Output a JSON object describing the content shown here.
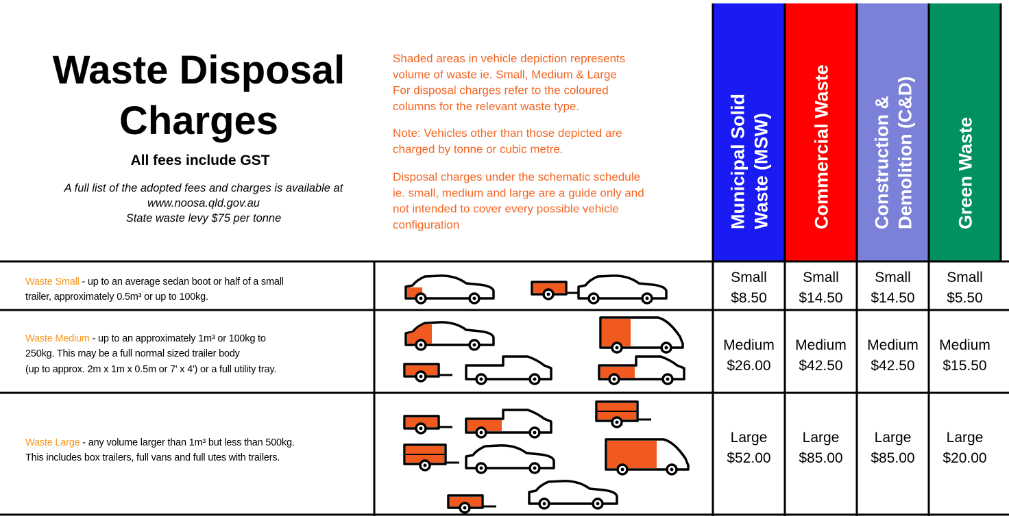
{
  "header": {
    "title": [
      "Waste Disposal",
      "Charges"
    ],
    "subtitle": "All fees include GST",
    "info": [
      "A full list of the adopted fees and charges is available at",
      "www.noosa.qld.gov.au",
      "State waste levy $75 per tonne"
    ]
  },
  "notes": [
    [
      "Shaded areas in vehicle depiction represents",
      "volume of waste ie. Small, Medium & Large",
      "For disposal charges refer to the coloured",
      "columns for the relevant waste type."
    ],
    [
      "Note: Vehicles other than those depicted are",
      "charged by tonne or cubic metre."
    ],
    [
      "Disposal charges under the schematic schedule",
      "ie. small, medium and large are a guide only and",
      "not intended to cover every possible vehicle",
      "configuration"
    ]
  ],
  "columns": [
    {
      "name": [
        "Municipal Solid",
        "Waste (MSW)"
      ],
      "color": "#1a1af2"
    },
    {
      "name": [
        "Commercial Waste"
      ],
      "color": "#ff0000"
    },
    {
      "name": [
        "Construction &",
        "Demolition (C&D)"
      ],
      "color": "#7b80d8"
    },
    {
      "name": [
        "Green Waste"
      ],
      "color": "#00915e"
    }
  ],
  "rows": [
    {
      "label": "Waste Small",
      "description": [
        " - up to an average sedan boot or half of a small",
        "trailer, approximately 0.5m³ or up to 100kg."
      ],
      "charges": [
        {
          "size": "Small",
          "price": "$8.50"
        },
        {
          "size": "Small",
          "price": "$14.50"
        },
        {
          "size": "Small",
          "price": "$14.50"
        },
        {
          "size": "Small",
          "price": "$5.50"
        }
      ]
    },
    {
      "label": "Waste Medium",
      "description": [
        " - up to an approximately 1m³ or 100kg to",
        "250kg. This may be a full normal sized trailer body",
        "(up to approx. 2m x 1m x 0.5m or 7' x 4') or a full utility tray."
      ],
      "charges": [
        {
          "size": "Medium",
          "price": "$26.00"
        },
        {
          "size": "Medium",
          "price": "$42.50"
        },
        {
          "size": "Medium",
          "price": "$42.50"
        },
        {
          "size": "Medium",
          "price": "$15.50"
        }
      ]
    },
    {
      "label": "Waste Large",
      "description": [
        " - any volume larger than 1m³ but less than 500kg.",
        "This includes box trailers, full vans and full utes with trailers."
      ],
      "charges": [
        {
          "size": "Large",
          "price": "$52.00"
        },
        {
          "size": "Large",
          "price": "$85.00"
        },
        {
          "size": "Large",
          "price": "$85.00"
        },
        {
          "size": "Large",
          "price": "$20.00"
        }
      ]
    }
  ]
}
